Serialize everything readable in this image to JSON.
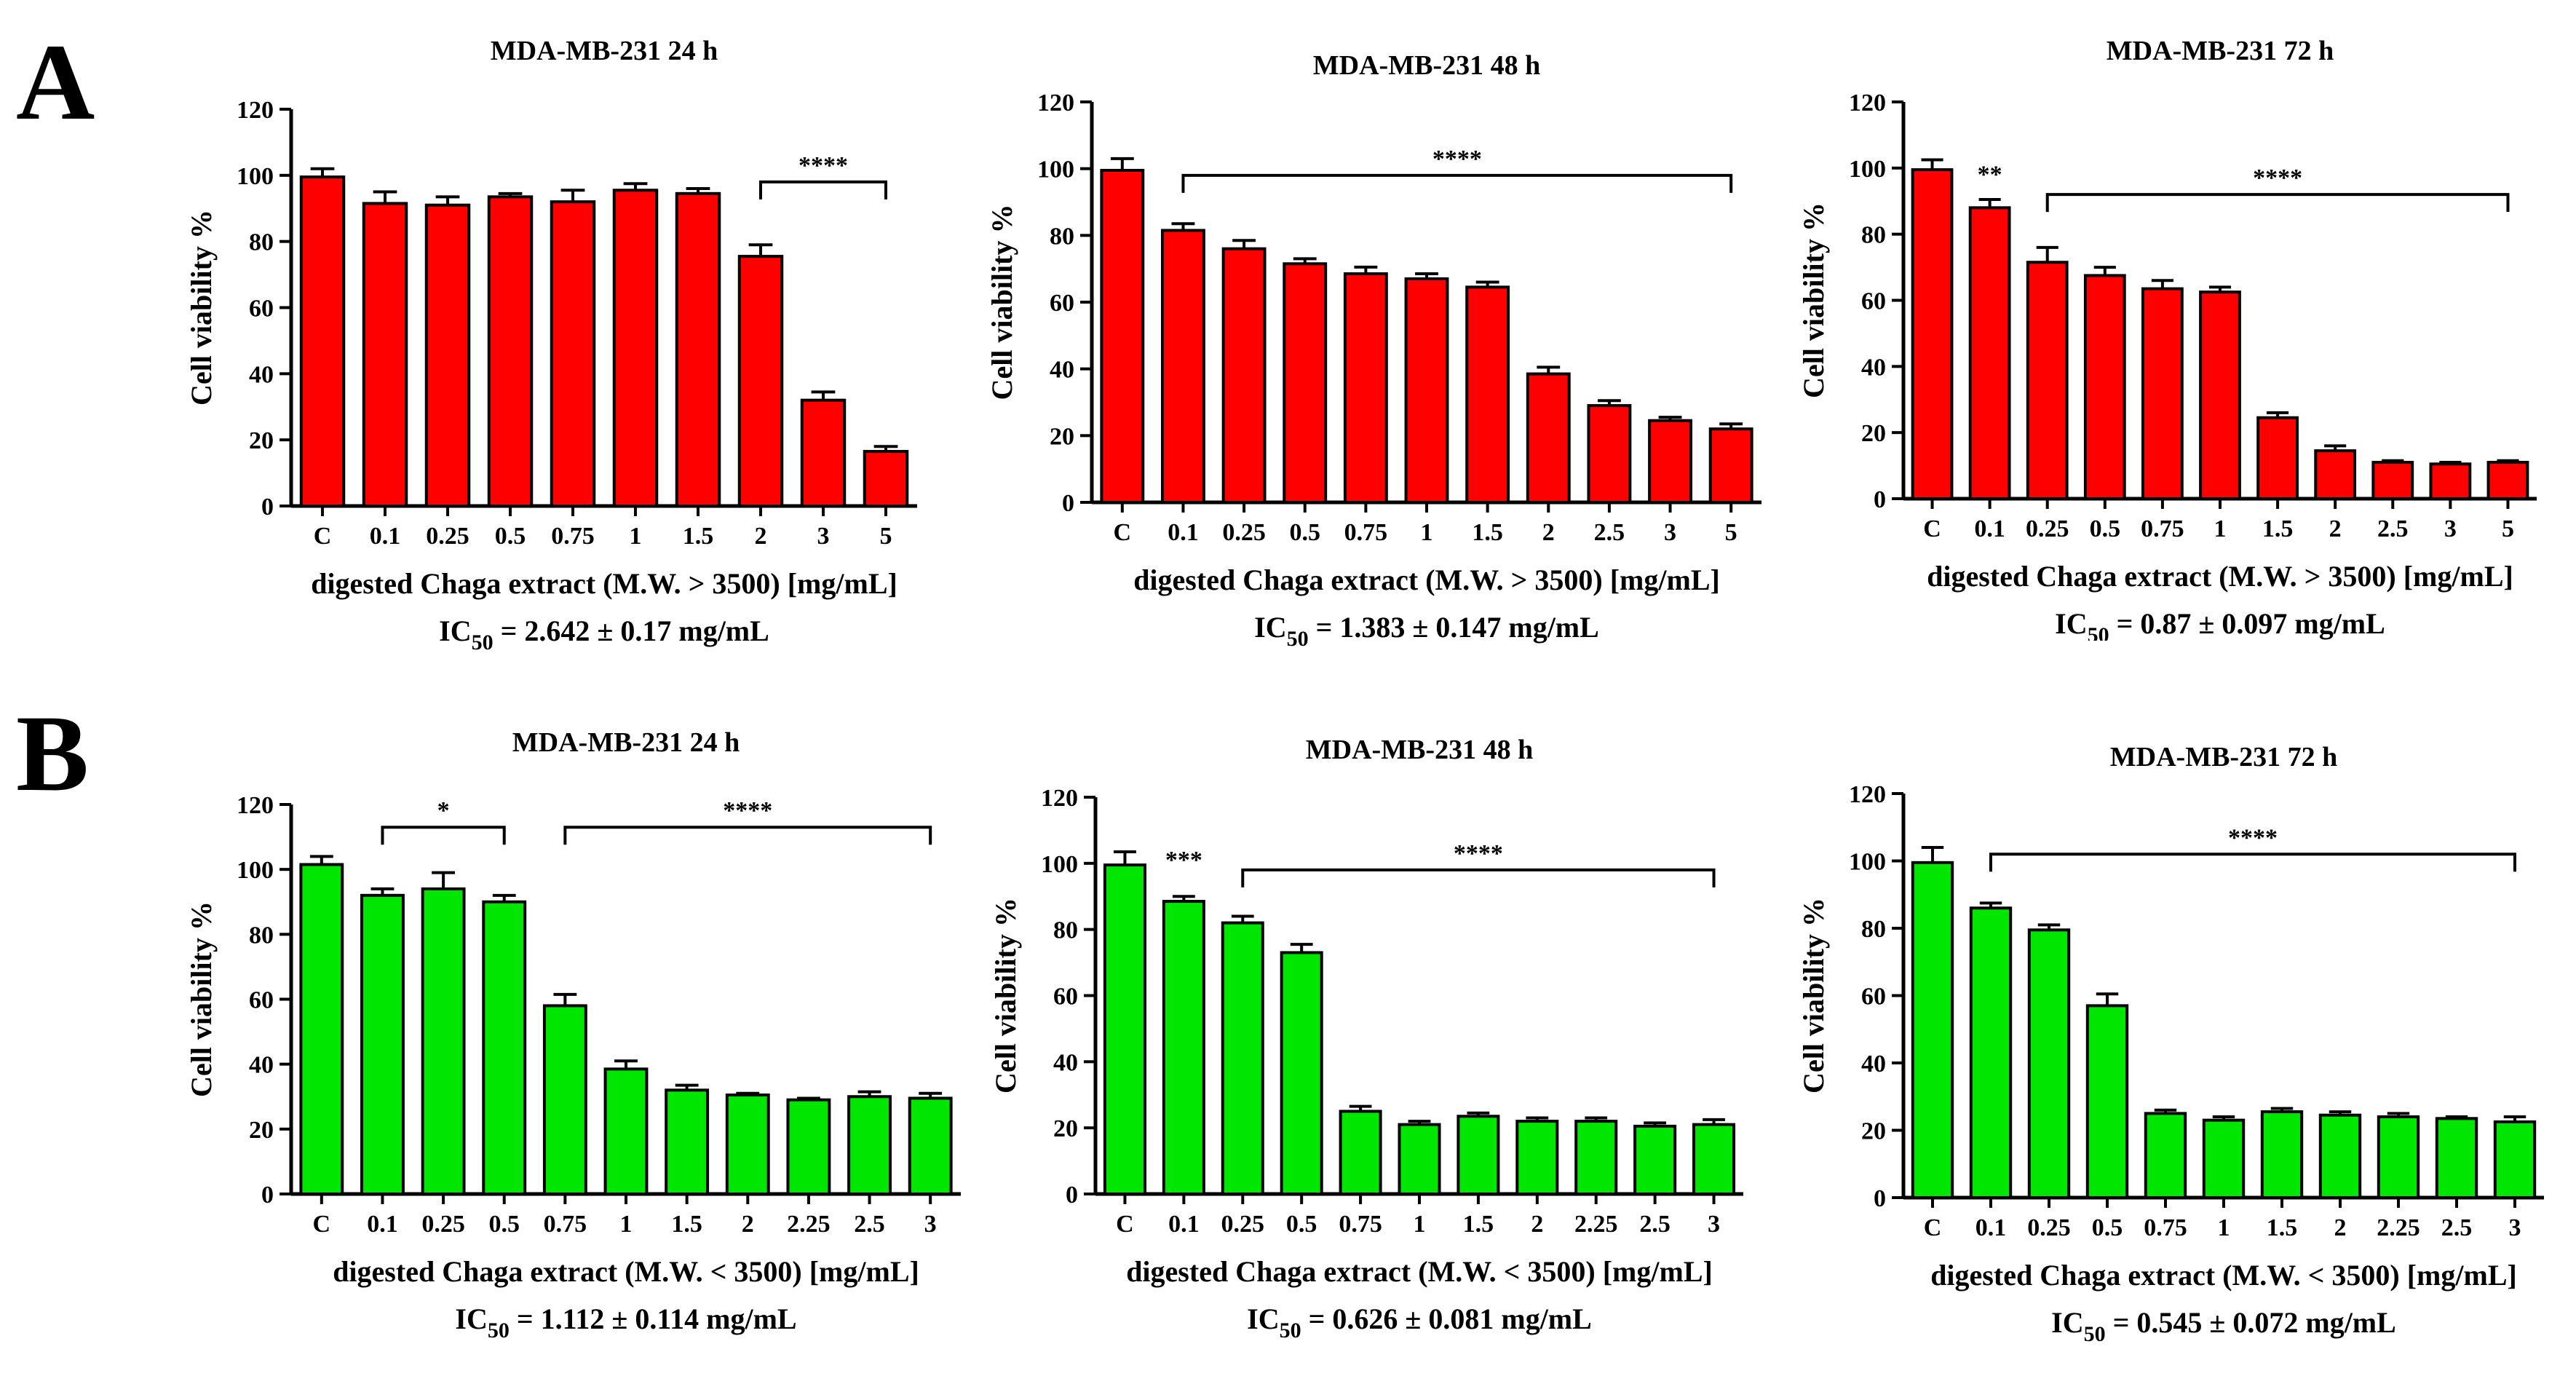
{
  "panels": [
    {
      "letter": "A",
      "charts": [
        0,
        1,
        2
      ]
    },
    {
      "letter": "B",
      "charts": [
        3,
        4,
        5
      ]
    }
  ],
  "colors": {
    "red": "#ff0000",
    "green": "#00e600",
    "axis": "#000000"
  },
  "chart_data": [
    {
      "type": "bar",
      "title": "MDA-MB-231 24 h",
      "ylabel": "Cell viability %",
      "xlabel": "digested Chaga extract (M.W. > 3500) [mg/mL]",
      "ic50": {
        "prefix": "IC",
        "sub": "50",
        "value": " = 2.642 ± 0.17 mg/mL"
      },
      "ylim": [
        0,
        120
      ],
      "yticks": [
        0,
        20,
        40,
        60,
        80,
        100,
        120
      ],
      "color": "#ff0000",
      "categories": [
        "C",
        "0.1",
        "0.25",
        "0.5",
        "0.75",
        "1",
        "1.5",
        "2",
        "3",
        "5"
      ],
      "values": [
        99.5,
        91.5,
        91,
        93.5,
        92,
        95.5,
        94.5,
        75.5,
        32,
        16.5
      ],
      "errors": [
        2.5,
        3.5,
        2.5,
        1,
        3.5,
        2,
        1.5,
        3.5,
        2.5,
        1.5
      ],
      "annotations": [
        {
          "label": "****",
          "from": 7,
          "to": 9,
          "y": 98
        }
      ]
    },
    {
      "type": "bar",
      "title": "MDA-MB-231 48 h",
      "ylabel": "Cell viability %",
      "xlabel": "digested Chaga extract (M.W. > 3500) [mg/mL]",
      "ic50": {
        "prefix": "IC",
        "sub": "50",
        "value": " = 1.383 ± 0.147 mg/mL"
      },
      "ylim": [
        0,
        120
      ],
      "yticks": [
        0,
        20,
        40,
        60,
        80,
        100,
        120
      ],
      "color": "#ff0000",
      "categories": [
        "C",
        "0.1",
        "0.25",
        "0.5",
        "0.75",
        "1",
        "1.5",
        "2",
        "2.5",
        "3",
        "5"
      ],
      "values": [
        99.5,
        81.5,
        76,
        71.5,
        68.5,
        67,
        64.5,
        38.5,
        29,
        24.5,
        22
      ],
      "errors": [
        3.5,
        2,
        2.5,
        1.5,
        2,
        1.5,
        1.5,
        2,
        1.5,
        1,
        1.5
      ],
      "annotations": [
        {
          "label": "****",
          "from": 1,
          "to": 10,
          "y": 98
        }
      ]
    },
    {
      "type": "bar",
      "title": "MDA-MB-231 72 h",
      "ylabel": "Cell viability %",
      "xlabel": "digested Chaga extract (M.W. > 3500) [mg/mL]",
      "ic50": {
        "prefix": "IC",
        "sub": "50",
        "value": " = 0.87 ± 0.097 mg/mL"
      },
      "ylim": [
        0,
        120
      ],
      "yticks": [
        0,
        20,
        40,
        60,
        80,
        100,
        120
      ],
      "color": "#ff0000",
      "categories": [
        "C",
        "0.1",
        "0.25",
        "0.5",
        "0.75",
        "1",
        "1.5",
        "2",
        "2.5",
        "3",
        "5"
      ],
      "values": [
        99.5,
        88,
        71.5,
        67.5,
        63.5,
        62.5,
        24.5,
        14.5,
        11,
        10.5,
        11
      ],
      "errors": [
        3,
        2.5,
        4.5,
        2.5,
        2.5,
        1.5,
        1.5,
        1.5,
        0.5,
        0.5,
        0.5
      ],
      "annotations": [
        {
          "label": "**",
          "from": 1,
          "to": 1,
          "y": 93,
          "text_only": true
        },
        {
          "label": "****",
          "from": 2,
          "to": 10,
          "y": 92
        }
      ]
    },
    {
      "type": "bar",
      "title": "MDA-MB-231 24 h",
      "ylabel": "Cell viability %",
      "xlabel": "digested Chaga extract (M.W. < 3500) [mg/mL]",
      "ic50": {
        "prefix": "IC",
        "sub": "50",
        "value": " = 1.112 ± 0.114 mg/mL"
      },
      "ylim": [
        0,
        120
      ],
      "yticks": [
        0,
        20,
        40,
        60,
        80,
        100,
        120
      ],
      "color": "#00e600",
      "categories": [
        "C",
        "0.1",
        "0.25",
        "0.5",
        "0.75",
        "1",
        "1.5",
        "2",
        "2.25",
        "2.5",
        "3"
      ],
      "values": [
        101.5,
        92,
        94,
        90,
        58,
        38.5,
        32,
        30.5,
        29,
        30,
        29.5
      ],
      "errors": [
        2.5,
        2,
        5,
        2,
        3.5,
        2.5,
        1.5,
        0.5,
        0.5,
        1.5,
        1.5
      ],
      "annotations": [
        {
          "label": "*",
          "from": 1,
          "to": 3,
          "y": 113
        },
        {
          "label": "****",
          "from": 4,
          "to": 10,
          "y": 113
        }
      ]
    },
    {
      "type": "bar",
      "title": "MDA-MB-231 48 h",
      "ylabel": "Cell viability %",
      "xlabel": "digested Chaga extract (M.W. < 3500) [mg/mL]",
      "ic50": {
        "prefix": "IC",
        "sub": "50",
        "value": " = 0.626 ± 0.081 mg/mL"
      },
      "ylim": [
        0,
        120
      ],
      "yticks": [
        0,
        20,
        40,
        60,
        80,
        100,
        120
      ],
      "color": "#00e600",
      "categories": [
        "C",
        "0.1",
        "0.25",
        "0.5",
        "0.75",
        "1",
        "1.5",
        "2",
        "2.25",
        "2.5",
        "3"
      ],
      "values": [
        99.5,
        88.5,
        82,
        73,
        25,
        21,
        23.5,
        22,
        22,
        20.5,
        21
      ],
      "errors": [
        4,
        1.5,
        2,
        2.5,
        1.5,
        1,
        1,
        1,
        1,
        1,
        1.5
      ],
      "annotations": [
        {
          "label": "***",
          "from": 1,
          "to": 1,
          "y": 96,
          "text_only": true
        },
        {
          "label": "****",
          "from": 2,
          "to": 10,
          "y": 98
        }
      ]
    },
    {
      "type": "bar",
      "title": "MDA-MB-231 72 h",
      "ylabel": "Cell viability %",
      "xlabel": "digested Chaga extract (M.W. < 3500) [mg/mL]",
      "ic50": {
        "prefix": "IC",
        "sub": "50",
        "value": " = 0.545 ± 0.072 mg/mL"
      },
      "ylim": [
        0,
        120
      ],
      "yticks": [
        0,
        20,
        40,
        60,
        80,
        100,
        120
      ],
      "color": "#00e600",
      "categories": [
        "C",
        "0.1",
        "0.25",
        "0.5",
        "0.75",
        "1",
        "1.5",
        "2",
        "2.25",
        "2.5",
        "3"
      ],
      "values": [
        99.5,
        86,
        79.5,
        57,
        25,
        23,
        25.5,
        24.5,
        24,
        23.5,
        22.5
      ],
      "errors": [
        4.5,
        1.5,
        1.5,
        3.5,
        1,
        1,
        1,
        1,
        1,
        0.5,
        1.5
      ],
      "annotations": [
        {
          "label": "****",
          "from": 1,
          "to": 10,
          "y": 102
        }
      ]
    }
  ]
}
